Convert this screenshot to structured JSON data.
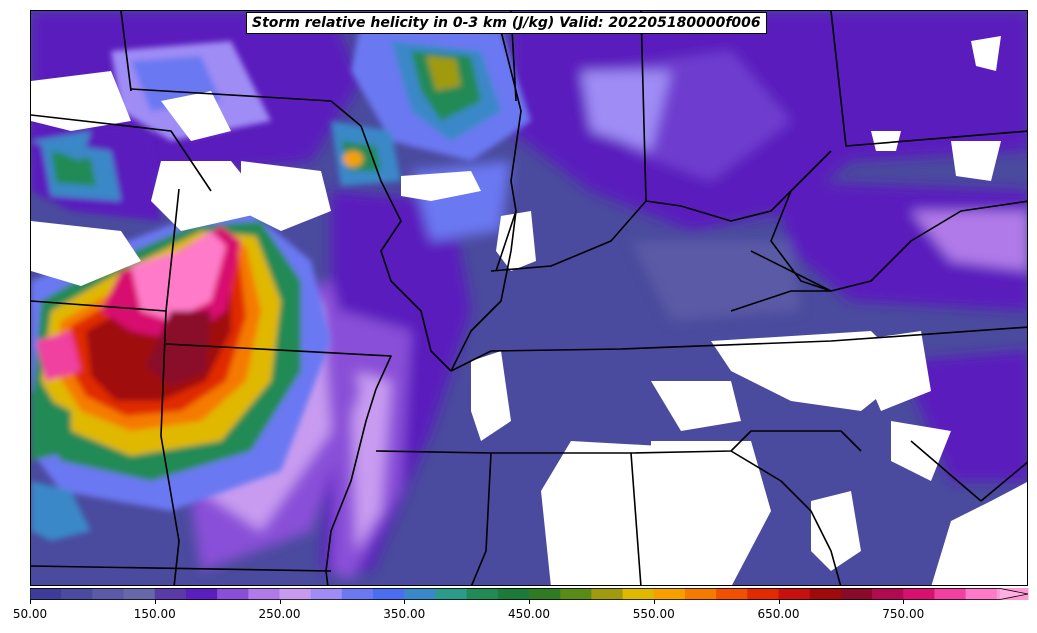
{
  "title": "Storm relative helicity in 0-3 km (J/kg) Valid: 202205180000f006",
  "colorbar": {
    "min": 50,
    "max": 850,
    "step": 25,
    "extend": "max",
    "ticks": [
      "50.00",
      "150.00",
      "250.00",
      "350.00",
      "450.00",
      "550.00",
      "650.00",
      "750.00"
    ],
    "colors": [
      "#3d3d99",
      "#4a4a9e",
      "#5a5aa6",
      "#6767a9",
      "#5a3aa8",
      "#5a1fbd",
      "#8a4fd8",
      "#b07ae8",
      "#c89bf0",
      "#9f8cf5",
      "#6a78f2",
      "#4b6ef0",
      "#3a88c8",
      "#2e9a8a",
      "#238a55",
      "#1e7a3a",
      "#2f7a22",
      "#5a8a18",
      "#a09a10",
      "#e0b800",
      "#f5a000",
      "#f57a00",
      "#f05000",
      "#e02a00",
      "#c81010",
      "#a00a0a",
      "#8a0a2a",
      "#b00a50",
      "#d81070",
      "#f040a0",
      "#ff7ac8",
      "#ff9ad6"
    ],
    "extend_color": "#ffb0e0"
  }
}
